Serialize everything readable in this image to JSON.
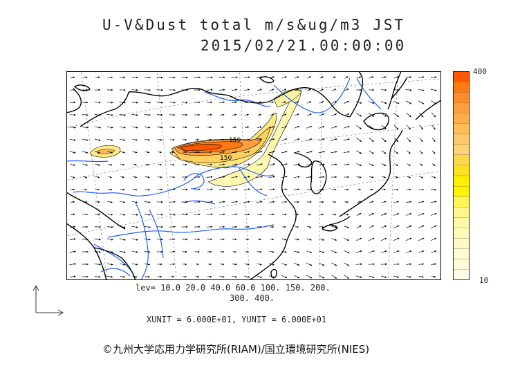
{
  "title": {
    "line1": "U-V&Dust total m/s&ug/m3 JST",
    "line2": "2015/02/21.00:00:00"
  },
  "colorbar": {
    "max_label": "400",
    "min_label": "10",
    "colors": [
      "#ff5a00",
      "#ff7a10",
      "#ff8c28",
      "#ff9e3c",
      "#ffae4a",
      "#ffbe5a",
      "#ffc86a",
      "#ffd276",
      "#ffd84a",
      "#ffe020",
      "#ffee00",
      "#fff200",
      "#fff55a",
      "#fff78a",
      "#fff8a6",
      "#fff9b6",
      "#fffac4",
      "#fffbd0",
      "#fffcdc",
      "#fffde8"
    ],
    "min_value": 10,
    "max_value": 400
  },
  "contour_labels": {
    "label_a": "150",
    "label_b": "150"
  },
  "legend": {
    "lev_line1": "lev= 10.0 20.0 40.0 60.0 100. 150. 200.",
    "lev_line2": "300. 400.",
    "units": "XUNIT = 6.000E+01, YUNIT = 6.000E+01"
  },
  "colors": {
    "coast": "#000000",
    "river": "#1a5cff",
    "graticule": "#888888",
    "dust_low": "#fff8b0",
    "dust_mid": "#ffd060",
    "dust_high": "#ff5500"
  },
  "copyright": "©九州大学応用力学研究所(RIAM)/国立環境研究所(NIES)"
}
